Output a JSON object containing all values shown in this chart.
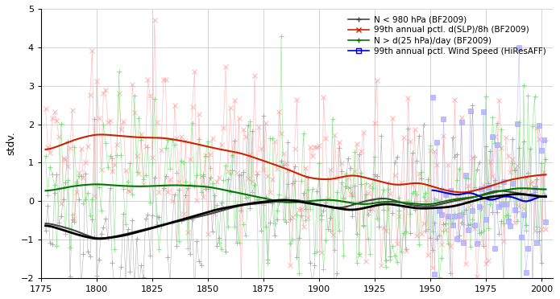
{
  "title": "",
  "ylabel": "stdv.",
  "xlim": [
    1775,
    2005
  ],
  "ylim": [
    -2,
    5
  ],
  "yticks": [
    -2,
    -1,
    0,
    1,
    2,
    3,
    4,
    5
  ],
  "xticks": [
    1775,
    1800,
    1825,
    1850,
    1875,
    1900,
    1925,
    1950,
    1975,
    2000
  ],
  "bg_color": "#ffffff",
  "grid_color": "#cccccc",
  "series": [
    {
      "label": "N < 980 hPa (BF2009)",
      "raw_color": "#999999",
      "smooth_color": "#444444",
      "marker": "+",
      "markersize": 4,
      "raw_lw": 0.4,
      "smooth_lw": 1.5
    },
    {
      "label": "99th annual pctl. d(SLP)/8h (BF2009)",
      "raw_color": "#ff9999",
      "smooth_color": "#cc2200",
      "marker": "x",
      "markersize": 4,
      "raw_lw": 0.4,
      "smooth_lw": 1.5
    },
    {
      "label": "N > d(25 hPa)/day (BF2009)",
      "raw_color": "#66dd66",
      "smooth_color": "#007700",
      "marker": "+",
      "markersize": 4,
      "raw_lw": 0.4,
      "smooth_lw": 1.5
    },
    {
      "label": "99th annual pctl. Wind Speed (HiResAFF)",
      "raw_color": "#aaaaff",
      "smooth_color": "#0000cc",
      "marker": "s",
      "markersize": 4,
      "raw_lw": 0.4,
      "smooth_lw": 1.5
    }
  ],
  "black_lw": 2.0,
  "seed": 12345,
  "year_start": 1777,
  "year_end": 2002,
  "wind_year_start": 1951
}
